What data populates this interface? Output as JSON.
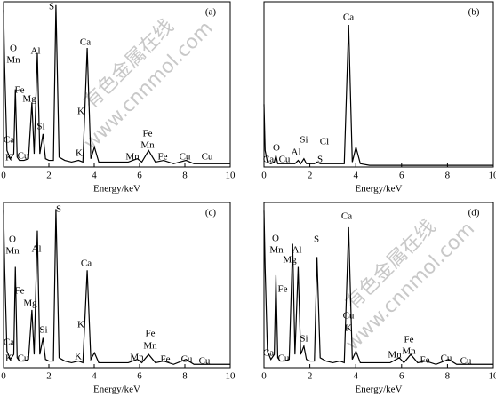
{
  "chart_data": [
    {
      "type": "line",
      "panel_label": "(a)",
      "x_label": "Energy/keV",
      "xlim": [
        0,
        10
      ],
      "xticks": [
        0,
        2,
        4,
        6,
        8,
        10
      ],
      "ylim": [
        0,
        100
      ],
      "color": "#000000",
      "x": [
        0,
        0.05,
        0.15,
        0.3,
        0.45,
        0.52,
        0.6,
        0.7,
        0.9,
        1.1,
        1.25,
        1.35,
        1.49,
        1.6,
        1.74,
        1.85,
        2.0,
        2.2,
        2.31,
        2.45,
        2.7,
        3.0,
        3.31,
        3.5,
        3.69,
        3.85,
        4.01,
        4.2,
        4.6,
        5.0,
        5.5,
        5.9,
        6.1,
        6.4,
        6.7,
        7.06,
        7.5,
        8.05,
        8.4,
        9.0,
        10
      ],
      "values": [
        95,
        60,
        10,
        5,
        8,
        47,
        6,
        4,
        4,
        5,
        39,
        8,
        69,
        8,
        20,
        5,
        4,
        4,
        98,
        6,
        4,
        3,
        4,
        3,
        72,
        5,
        12,
        3,
        3,
        3,
        3,
        5,
        3,
        10,
        3,
        4,
        2,
        4,
        2,
        2,
        2
      ],
      "annotations": [
        "S",
        "O",
        "Mn",
        "Al",
        "Ca",
        "Fe",
        "Mg",
        "Si",
        "K",
        "Ca",
        "K",
        "Cu",
        "K",
        "Fe",
        "Mn",
        "Mn",
        "Fe",
        "Cu",
        "Cu"
      ],
      "watermark": [
        "有色金属在线",
        "www.cnnmol.com"
      ]
    },
    {
      "type": "line",
      "panel_label": "(b)",
      "x_label": "Energy/keV",
      "xlim": [
        0,
        10
      ],
      "xticks": [
        0,
        2,
        4,
        6,
        8,
        10
      ],
      "ylim": [
        0,
        100
      ],
      "color": "#000000",
      "x": [
        0,
        0.05,
        0.15,
        0.3,
        0.45,
        0.52,
        0.6,
        0.7,
        0.9,
        1.1,
        1.25,
        1.35,
        1.49,
        1.6,
        1.74,
        1.85,
        2.0,
        2.2,
        2.31,
        2.45,
        2.7,
        3.0,
        3.31,
        3.5,
        3.69,
        3.85,
        4.01,
        4.2,
        4.6,
        5.0,
        5.5,
        5.9,
        6.1,
        6.4,
        6.7,
        7.06,
        7.5,
        8.05,
        8.4,
        9.0,
        10
      ],
      "values": [
        38,
        10,
        3,
        2,
        3,
        7,
        2,
        2,
        2,
        2,
        2,
        2,
        4,
        2,
        5,
        2,
        2,
        2,
        3,
        2,
        2,
        2,
        2,
        2,
        86,
        3,
        12,
        2,
        1,
        1,
        1,
        1,
        1,
        1,
        1,
        1,
        1,
        1,
        1,
        1,
        1
      ],
      "annotations": [
        "Ca",
        "O",
        "Si",
        "Cl",
        "Al",
        "S",
        "Ca",
        "Cu"
      ]
    },
    {
      "type": "line",
      "panel_label": "(c)",
      "x_label": "Energy/keV",
      "xlim": [
        0,
        10
      ],
      "xticks": [
        0,
        2,
        4,
        6,
        8,
        10
      ],
      "ylim": [
        0,
        100
      ],
      "color": "#000000",
      "x": [
        0,
        0.05,
        0.15,
        0.3,
        0.45,
        0.52,
        0.6,
        0.7,
        0.9,
        1.1,
        1.25,
        1.35,
        1.49,
        1.6,
        1.74,
        1.85,
        2.0,
        2.2,
        2.31,
        2.45,
        2.7,
        3.0,
        3.31,
        3.5,
        3.69,
        3.85,
        4.01,
        4.2,
        4.6,
        5.0,
        5.5,
        5.9,
        6.1,
        6.4,
        6.7,
        7.06,
        7.5,
        8.05,
        8.4,
        9.0,
        10
      ],
      "values": [
        95,
        60,
        10,
        5,
        8,
        61,
        6,
        4,
        4,
        5,
        35,
        8,
        83,
        8,
        18,
        5,
        4,
        4,
        96,
        6,
        4,
        3,
        4,
        3,
        59,
        5,
        9,
        3,
        3,
        3,
        3,
        5,
        3,
        8,
        3,
        4,
        2,
        5,
        2,
        2,
        2
      ],
      "annotations": [
        "S",
        "O",
        "Mn",
        "Al",
        "Ca",
        "Fe",
        "Mg",
        "Si",
        "K",
        "Ca",
        "K",
        "Cu",
        "K",
        "Fe",
        "Mn",
        "Mn",
        "Fe",
        "Cu",
        "Cu"
      ]
    },
    {
      "type": "line",
      "panel_label": "(d)",
      "x_label": "Energy/keV",
      "xlim": [
        0,
        10
      ],
      "xticks": [
        0,
        2,
        4,
        6,
        8,
        10
      ],
      "ylim": [
        0,
        100
      ],
      "color": "#000000",
      "x": [
        0,
        0.05,
        0.15,
        0.3,
        0.45,
        0.52,
        0.6,
        0.7,
        0.9,
        1.1,
        1.25,
        1.35,
        1.49,
        1.6,
        1.74,
        1.85,
        2.0,
        2.2,
        2.31,
        2.45,
        2.7,
        3.0,
        3.31,
        3.5,
        3.69,
        3.85,
        4.01,
        4.2,
        4.6,
        5.0,
        5.5,
        5.9,
        6.1,
        6.4,
        6.7,
        7.06,
        7.5,
        8.05,
        8.4,
        9.0,
        10
      ],
      "values": [
        95,
        60,
        10,
        5,
        8,
        56,
        6,
        4,
        4,
        5,
        75,
        8,
        61,
        8,
        13,
        5,
        4,
        4,
        67,
        6,
        4,
        3,
        4,
        3,
        85,
        5,
        10,
        3,
        3,
        3,
        3,
        6,
        3,
        8,
        3,
        4,
        2,
        5,
        2,
        2,
        2
      ],
      "annotations": [
        "Ca",
        "O",
        "Mn",
        "Mg",
        "Al",
        "S",
        "Fe",
        "Si",
        "Cu",
        "K",
        "Ca",
        "Cu",
        "Mn",
        "Fe",
        "Mn",
        "Fe",
        "Cu",
        "Cu"
      ],
      "watermark": [
        "有色金属在线",
        "www.cnnmol.com"
      ]
    }
  ]
}
